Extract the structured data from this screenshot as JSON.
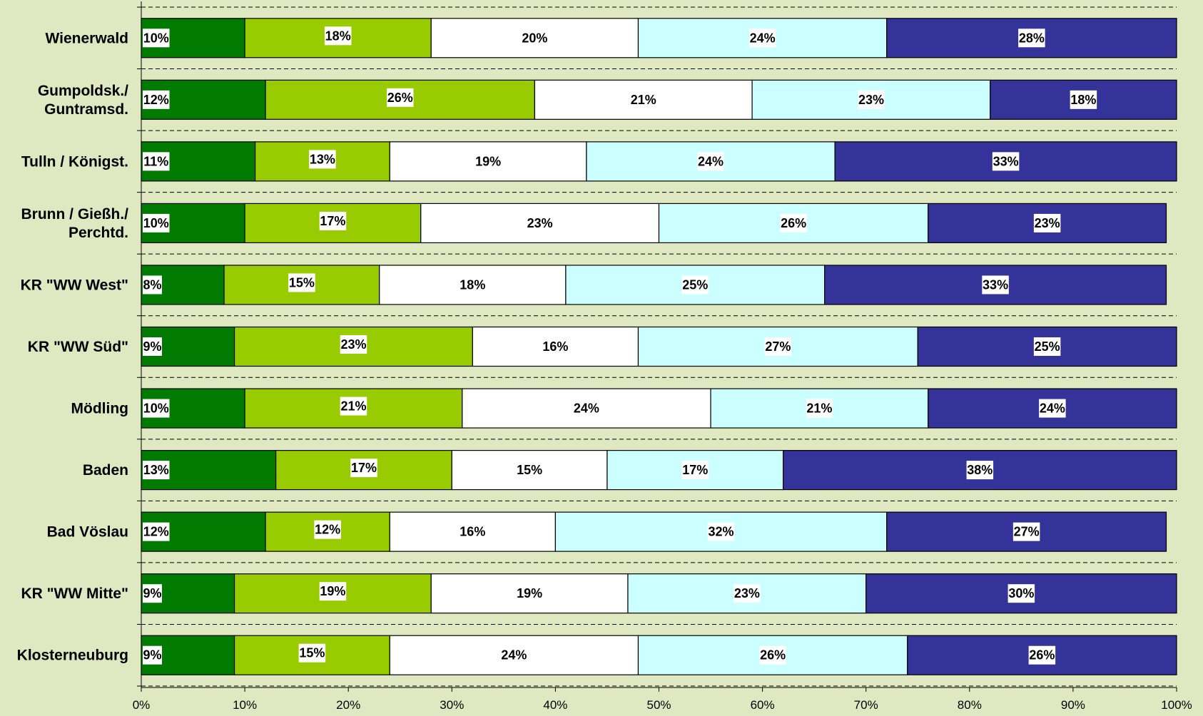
{
  "chart_data": {
    "type": "bar",
    "orientation": "horizontal",
    "stacked": "percent",
    "title": "",
    "xlabel": "",
    "ylabel": "",
    "xlim": [
      0,
      100
    ],
    "x_ticks": [
      "0%",
      "10%",
      "20%",
      "30%",
      "40%",
      "50%",
      "60%",
      "70%",
      "80%",
      "90%",
      "100%"
    ],
    "grid": "dashed horizontal separators",
    "legend": "none",
    "categories": [
      [
        "Wienerwald"
      ],
      [
        "Gumpoldsk./",
        "Guntramsd."
      ],
      [
        "Tulln / Königst."
      ],
      [
        "Brunn / Gießh./",
        "Perchtd."
      ],
      [
        "KR \"WW West\""
      ],
      [
        "KR \"WW Süd\""
      ],
      [
        "Mödling"
      ],
      [
        "Baden"
      ],
      [
        "Bad Vöslau"
      ],
      [
        "KR \"WW Mitte\""
      ],
      [
        "Klosterneuburg"
      ]
    ],
    "series": [
      {
        "color": "#007a00",
        "values": [
          10,
          12,
          11,
          10,
          8,
          9,
          10,
          13,
          12,
          9,
          9
        ],
        "labels": [
          "10%",
          "12%",
          "11%",
          "10%",
          "8%",
          "9%",
          "10%",
          "13%",
          "12%",
          "9%",
          "9%"
        ]
      },
      {
        "color": "#99cc00",
        "values": [
          18,
          26,
          13,
          17,
          15,
          23,
          21,
          17,
          12,
          19,
          15
        ],
        "labels": [
          "18%",
          "26%",
          "13%",
          "17%",
          "15%",
          "23%",
          "21%",
          "17%",
          "12%",
          "19%",
          "15%"
        ]
      },
      {
        "color": "#ffffff",
        "values": [
          20,
          21,
          19,
          23,
          18,
          16,
          24,
          15,
          16,
          19,
          24
        ],
        "labels": [
          "20%",
          "21%",
          "19%",
          "23%",
          "18%",
          "16%",
          "24%",
          "15%",
          "16%",
          "19%",
          "24%"
        ]
      },
      {
        "color": "#ccffff",
        "values": [
          24,
          23,
          24,
          26,
          25,
          27,
          21,
          17,
          32,
          23,
          26
        ],
        "labels": [
          "24%",
          "23%",
          "24%",
          "26%",
          "25%",
          "27%",
          "21%",
          "17%",
          "32%",
          "23%",
          "26%"
        ]
      },
      {
        "color": "#333399",
        "values": [
          28,
          18,
          33,
          23,
          33,
          25,
          24,
          38,
          27,
          30,
          26
        ],
        "labels": [
          "28%",
          "18%",
          "33%",
          "23%",
          "33%",
          "25%",
          "24%",
          "38%",
          "27%",
          "30%",
          "26%"
        ]
      }
    ]
  }
}
